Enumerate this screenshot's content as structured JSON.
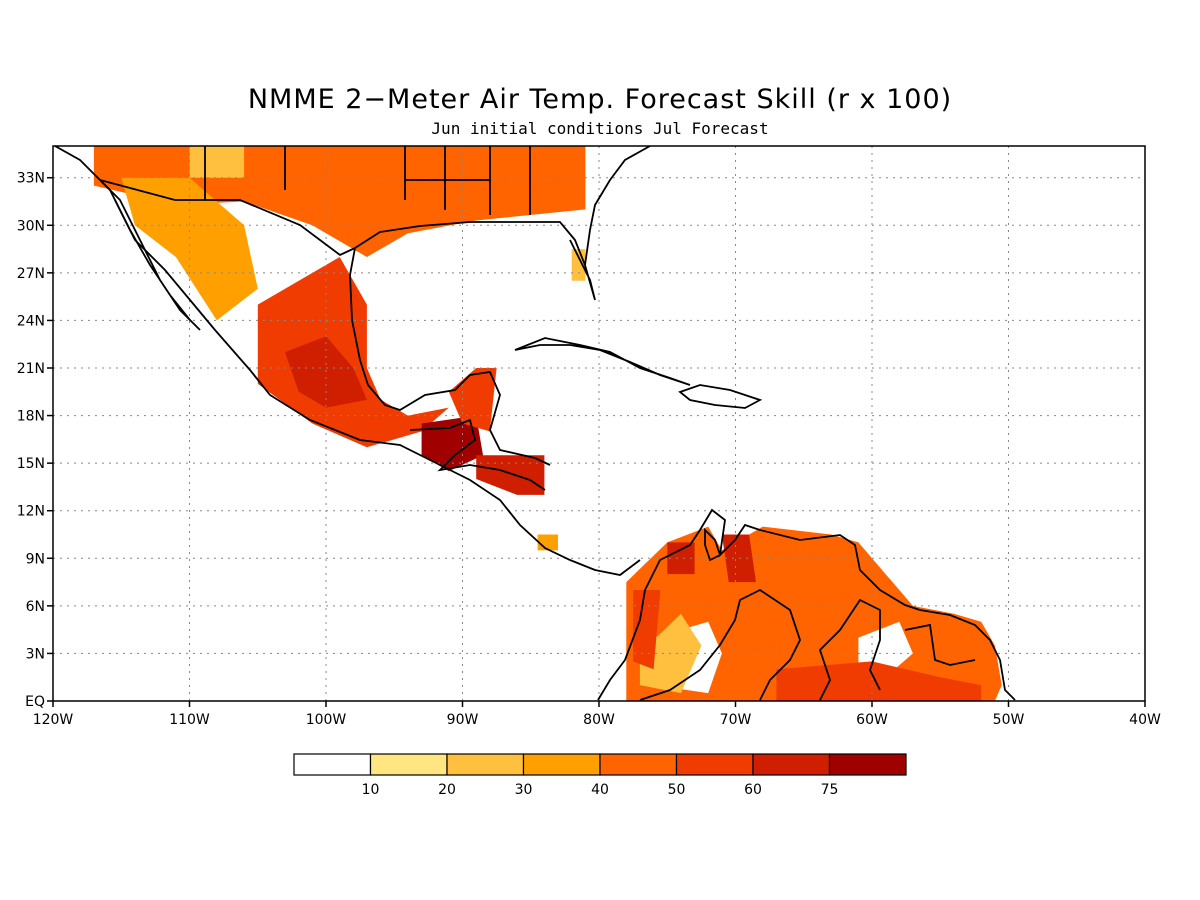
{
  "title": "NMME 2−Meter Air Temp. Forecast Skill (r x 100)",
  "subtitle": "Jun initial conditions  Jul Forecast",
  "map": {
    "lon_range": [
      -120,
      -40
    ],
    "lat_range": [
      0,
      35
    ],
    "lon_labels": [
      "120W",
      "110W",
      "100W",
      "90W",
      "80W",
      "70W",
      "60W",
      "50W",
      "40W"
    ],
    "lat_labels": [
      "EQ",
      "3N",
      "6N",
      "9N",
      "12N",
      "15N",
      "18N",
      "21N",
      "24N",
      "27N",
      "30N",
      "33N"
    ],
    "grid": "dotted"
  },
  "colorbar": {
    "labels": [
      "10",
      "20",
      "30",
      "40",
      "50",
      "60",
      "75"
    ],
    "colors": [
      "#ffffff",
      "#ffe680",
      "#ffc040",
      "#ffa000",
      "#ff6400",
      "#f03c00",
      "#d01e00",
      "#a00000"
    ]
  },
  "skill_regions": [
    {
      "name": "southern-us",
      "level": 4,
      "pts": [
        [
          -117,
          35
        ],
        [
          -81,
          35
        ],
        [
          -81,
          31
        ],
        [
          -89,
          30.3
        ],
        [
          -94,
          29.5
        ],
        [
          -97,
          28
        ],
        [
          -101,
          30
        ],
        [
          -106,
          31.5
        ],
        [
          -111,
          31.3
        ],
        [
          -117,
          32.5
        ]
      ]
    },
    {
      "name": "nw-mexico",
      "level": 3,
      "pts": [
        [
          -115,
          33
        ],
        [
          -110,
          33
        ],
        [
          -106,
          30
        ],
        [
          -105,
          26
        ],
        [
          -108,
          24
        ],
        [
          -111,
          28
        ],
        [
          -114,
          30
        ]
      ]
    },
    {
      "name": "arizona-low",
      "level": 2,
      "pts": [
        [
          -110,
          35
        ],
        [
          -106,
          35
        ],
        [
          -106,
          33
        ],
        [
          -110,
          33
        ]
      ]
    },
    {
      "name": "mexico-central",
      "level": 5,
      "pts": [
        [
          -105,
          25
        ],
        [
          -99,
          28
        ],
        [
          -97,
          25
        ],
        [
          -97,
          21
        ],
        [
          -96,
          19
        ],
        [
          -94,
          18
        ],
        [
          -91,
          18.5
        ],
        [
          -93,
          17
        ],
        [
          -97,
          16
        ],
        [
          -101,
          17.5
        ],
        [
          -105,
          20
        ]
      ]
    },
    {
      "name": "mexico-core",
      "level": 6,
      "pts": [
        [
          -103,
          22
        ],
        [
          -100,
          23
        ],
        [
          -98,
          21
        ],
        [
          -97,
          19
        ],
        [
          -100,
          18.5
        ],
        [
          -102,
          19.5
        ]
      ]
    },
    {
      "name": "guatemala",
      "level": 7,
      "pts": [
        [
          -93,
          17.5
        ],
        [
          -89,
          18
        ],
        [
          -88.5,
          15.5
        ],
        [
          -91,
          14.5
        ],
        [
          -93,
          15.5
        ]
      ]
    },
    {
      "name": "yucatan",
      "level": 5,
      "pts": [
        [
          -91,
          19.5
        ],
        [
          -89,
          21
        ],
        [
          -87.5,
          21
        ],
        [
          -88,
          17
        ],
        [
          -90,
          17.5
        ]
      ]
    },
    {
      "name": "honduras",
      "level": 6,
      "pts": [
        [
          -89,
          15.5
        ],
        [
          -84,
          15.5
        ],
        [
          -84,
          13
        ],
        [
          -86,
          13
        ],
        [
          -89,
          14
        ]
      ]
    },
    {
      "name": "costa-rica",
      "level": 3,
      "pts": [
        [
          -84.5,
          10.5
        ],
        [
          -83,
          10.5
        ],
        [
          -83,
          9.5
        ],
        [
          -84.5,
          9.5
        ]
      ]
    },
    {
      "name": "florida",
      "level": 2,
      "pts": [
        [
          -82,
          28.5
        ],
        [
          -81,
          28.5
        ],
        [
          -81,
          26.5
        ],
        [
          -82,
          26.5
        ]
      ]
    },
    {
      "name": "south-america",
      "level": 4,
      "pts": [
        [
          -78,
          7.5
        ],
        [
          -75,
          10
        ],
        [
          -72,
          11
        ],
        [
          -71,
          9.5
        ],
        [
          -68,
          11
        ],
        [
          -63,
          10.5
        ],
        [
          -61,
          10
        ],
        [
          -59,
          8
        ],
        [
          -57,
          6
        ],
        [
          -54,
          5.5
        ],
        [
          -52,
          5
        ],
        [
          -51,
          3.5
        ],
        [
          -50.5,
          1
        ],
        [
          -51,
          0
        ],
        [
          -78,
          0
        ],
        [
          -78,
          3
        ]
      ]
    },
    {
      "name": "sa-white-center",
      "level": 0,
      "pts": [
        [
          -76,
          4
        ],
        [
          -72,
          5
        ],
        [
          -71,
          3
        ],
        [
          -72,
          0.5
        ],
        [
          -76,
          1
        ]
      ]
    },
    {
      "name": "sa-light",
      "level": 2,
      "pts": [
        [
          -77,
          3
        ],
        [
          -74,
          5.5
        ],
        [
          -72.5,
          3.5
        ],
        [
          -74,
          0.5
        ],
        [
          -77,
          1
        ]
      ]
    },
    {
      "name": "sa-east-white",
      "level": 0,
      "pts": [
        [
          -61,
          4
        ],
        [
          -58,
          5
        ],
        [
          -57,
          3
        ],
        [
          -59,
          1.5
        ],
        [
          -61,
          2
        ]
      ]
    },
    {
      "name": "sa-red-north",
      "level": 6,
      "pts": [
        [
          -75,
          10
        ],
        [
          -73,
          10
        ],
        [
          -73,
          8
        ],
        [
          -75,
          8
        ]
      ]
    },
    {
      "name": "sa-red-lake",
      "level": 6,
      "pts": [
        [
          -71,
          10.5
        ],
        [
          -69,
          10.5
        ],
        [
          -68.5,
          7.5
        ],
        [
          -70.5,
          7.5
        ]
      ]
    },
    {
      "name": "sa-red-south",
      "level": 5,
      "pts": [
        [
          -67,
          2
        ],
        [
          -60,
          2.5
        ],
        [
          -55,
          1.5
        ],
        [
          -52,
          1
        ],
        [
          -52,
          0
        ],
        [
          -67,
          0
        ]
      ]
    },
    {
      "name": "sa-west",
      "level": 5,
      "pts": [
        [
          -77.5,
          7
        ],
        [
          -75.5,
          7
        ],
        [
          -76,
          2
        ],
        [
          -77.5,
          2.5
        ]
      ]
    }
  ]
}
